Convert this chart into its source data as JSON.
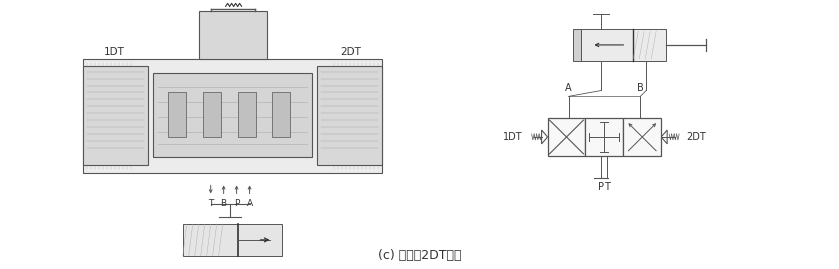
{
  "bg_color": "#ffffff",
  "line_color": "#555555",
  "dark_color": "#333333",
  "fig_width": 8.39,
  "fig_height": 2.69,
  "label_1DT": "1DT",
  "label_2DT": "2DT",
  "label_A": "A",
  "label_B": "B",
  "label_P": "P",
  "label_T": "T",
  "caption": "(c) 电磁铁2DT通电"
}
